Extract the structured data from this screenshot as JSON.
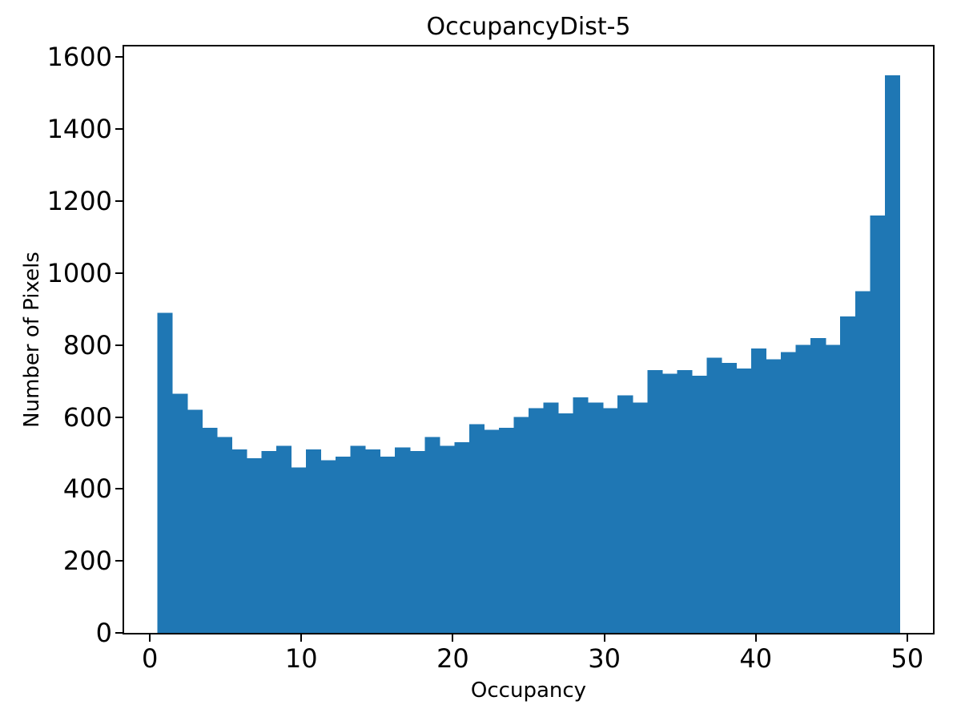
{
  "chart_data": {
    "type": "bar",
    "title": "OccupancyDist-5",
    "xlabel": "Occupancy",
    "ylabel": "Number of Pixels",
    "bar_color": "#1f77b4",
    "x_start": 0.5,
    "bin_width": 0.98,
    "values": [
      890,
      665,
      620,
      570,
      545,
      510,
      485,
      505,
      520,
      460,
      510,
      480,
      490,
      520,
      510,
      490,
      515,
      505,
      545,
      520,
      530,
      580,
      565,
      570,
      600,
      625,
      640,
      610,
      655,
      640,
      625,
      660,
      640,
      730,
      720,
      730,
      715,
      765,
      750,
      735,
      790,
      760,
      780,
      800,
      820,
      800,
      880,
      950,
      1160,
      1550
    ],
    "x_ticks": [
      0,
      10,
      20,
      30,
      40,
      50
    ],
    "y_ticks": [
      0,
      200,
      400,
      600,
      800,
      1000,
      1200,
      1400,
      1600
    ],
    "xlim": [
      -1.7,
      51.7
    ],
    "ylim": [
      0,
      1630
    ],
    "grid": false,
    "legend": "none"
  }
}
